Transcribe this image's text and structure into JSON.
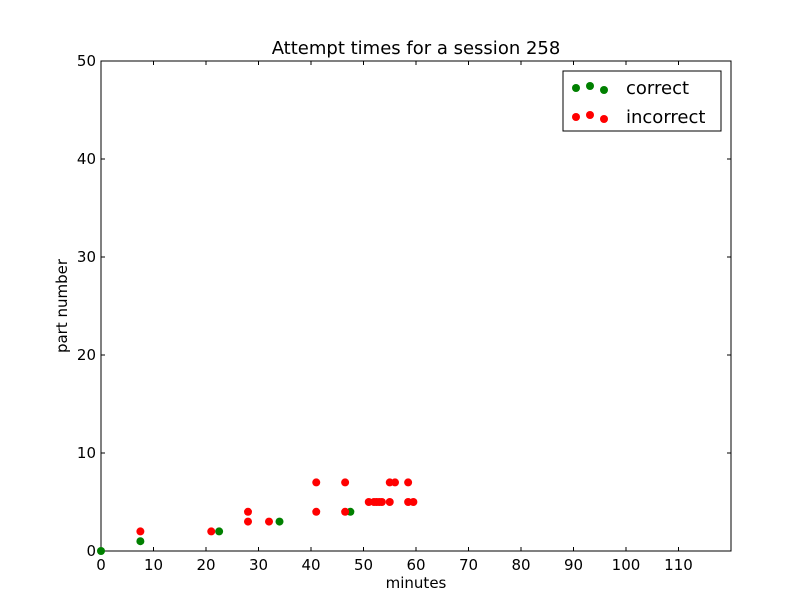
{
  "chart_data": {
    "type": "scatter",
    "title": "Attempt times for a session 258",
    "xlabel": "minutes",
    "ylabel": "part number",
    "xlim": [
      0,
      120
    ],
    "ylim": [
      0,
      50
    ],
    "xticks": [
      0,
      10,
      20,
      30,
      40,
      50,
      60,
      70,
      80,
      90,
      100,
      110
    ],
    "yticks": [
      0,
      10,
      20,
      30,
      40,
      50
    ],
    "grid": false,
    "legend_position": "top-right",
    "series": [
      {
        "name": "correct",
        "color": "#008000",
        "points": [
          {
            "x": 0,
            "y": 0
          },
          {
            "x": 7.5,
            "y": 1
          },
          {
            "x": 22.5,
            "y": 2
          },
          {
            "x": 34,
            "y": 3
          },
          {
            "x": 47.5,
            "y": 4
          }
        ]
      },
      {
        "name": "incorrect",
        "color": "#ff0000",
        "points": [
          {
            "x": 7.5,
            "y": 2
          },
          {
            "x": 21,
            "y": 2
          },
          {
            "x": 28,
            "y": 3
          },
          {
            "x": 28,
            "y": 4
          },
          {
            "x": 32,
            "y": 3
          },
          {
            "x": 41,
            "y": 4
          },
          {
            "x": 41,
            "y": 7
          },
          {
            "x": 46.5,
            "y": 4
          },
          {
            "x": 46.5,
            "y": 7
          },
          {
            "x": 51,
            "y": 5
          },
          {
            "x": 52,
            "y": 5
          },
          {
            "x": 52.5,
            "y": 5
          },
          {
            "x": 53,
            "y": 5
          },
          {
            "x": 53.5,
            "y": 5
          },
          {
            "x": 55,
            "y": 5
          },
          {
            "x": 55,
            "y": 7
          },
          {
            "x": 56,
            "y": 7
          },
          {
            "x": 58.5,
            "y": 5
          },
          {
            "x": 58.5,
            "y": 7
          },
          {
            "x": 59.5,
            "y": 5
          }
        ]
      }
    ]
  }
}
